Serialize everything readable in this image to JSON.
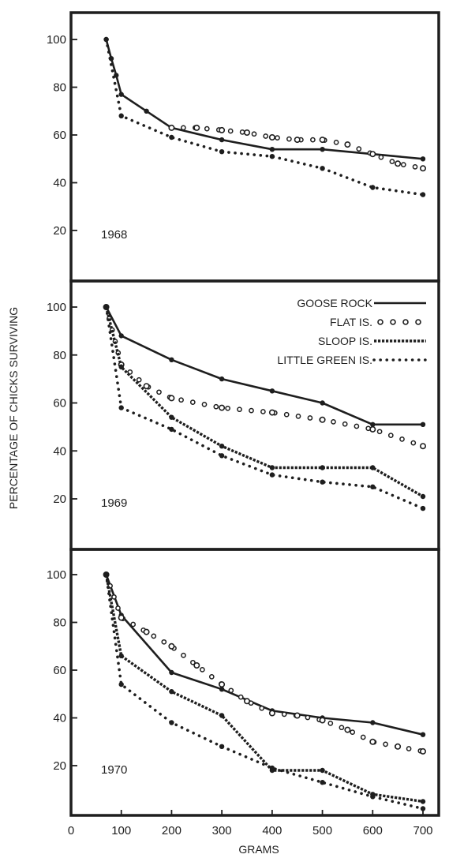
{
  "ylabel": "PERCENTAGE OF CHICKS SURVIVING",
  "xlabel": "GRAMS",
  "colors": {
    "ink": "#1e1e1e",
    "background": "#ffffff"
  },
  "chart_data": [
    {
      "type": "line",
      "panel_label": "1968",
      "xlim": [
        0,
        700
      ],
      "ylim": [
        0,
        110
      ],
      "yticks": [
        20,
        40,
        60,
        80,
        100
      ],
      "grid": false,
      "series": [
        {
          "name": "GOOSE ROCK",
          "style": "solid",
          "x": [
            70,
            80,
            90,
            100,
            150,
            200,
            300,
            400,
            500,
            600,
            700
          ],
          "y": [
            100,
            92,
            85,
            77,
            70,
            63,
            58,
            54,
            54,
            52,
            50
          ]
        },
        {
          "name": "FLAT IS.",
          "style": "hollow-dots",
          "x": [
            200,
            250,
            300,
            350,
            400,
            450,
            500,
            550,
            600,
            650,
            700
          ],
          "y": [
            63,
            63,
            62,
            61,
            59,
            58,
            58,
            56,
            52,
            48,
            46
          ]
        },
        {
          "name": "LITTLE GREEN IS.",
          "style": "dotted",
          "x": [
            70,
            100,
            200,
            300,
            400,
            500,
            600,
            700
          ],
          "y": [
            100,
            68,
            59,
            53,
            51,
            46,
            38,
            35
          ]
        }
      ]
    },
    {
      "type": "line",
      "panel_label": "1969",
      "xlim": [
        0,
        700
      ],
      "ylim": [
        0,
        110
      ],
      "yticks": [
        20,
        40,
        60,
        80,
        100
      ],
      "grid": false,
      "legend_position": "top-right",
      "series": [
        {
          "name": "GOOSE ROCK",
          "style": "solid",
          "x": [
            70,
            100,
            200,
            300,
            400,
            500,
            600,
            700
          ],
          "y": [
            100,
            88,
            78,
            70,
            65,
            60,
            51,
            51
          ]
        },
        {
          "name": "FLAT IS.",
          "style": "hollow-dots",
          "x": [
            70,
            100,
            150,
            200,
            300,
            400,
            500,
            600,
            700
          ],
          "y": [
            100,
            76,
            67,
            62,
            58,
            56,
            53,
            49,
            42
          ]
        },
        {
          "name": "SLOOP IS.",
          "style": "dashed",
          "x": [
            70,
            100,
            200,
            300,
            400,
            500,
            600,
            700
          ],
          "y": [
            100,
            75,
            54,
            42,
            33,
            33,
            33,
            21
          ]
        },
        {
          "name": "LITTLE GREEN IS.",
          "style": "dotted",
          "x": [
            70,
            100,
            200,
            300,
            400,
            500,
            600,
            700
          ],
          "y": [
            100,
            58,
            49,
            38,
            30,
            27,
            25,
            16
          ]
        }
      ]
    },
    {
      "type": "line",
      "panel_label": "1970",
      "xlim": [
        0,
        700
      ],
      "ylim": [
        0,
        110
      ],
      "yticks": [
        20,
        40,
        60,
        80,
        100
      ],
      "xticks": [
        0,
        100,
        200,
        300,
        400,
        500,
        600,
        700
      ],
      "grid": false,
      "series": [
        {
          "name": "GOOSE ROCK",
          "style": "solid",
          "x": [
            70,
            100,
            200,
            300,
            400,
            500,
            600,
            700
          ],
          "y": [
            100,
            83,
            59,
            52,
            43,
            40,
            38,
            33
          ]
        },
        {
          "name": "FLAT IS.",
          "style": "hollow-dots",
          "x": [
            70,
            100,
            150,
            200,
            250,
            300,
            350,
            400,
            450,
            500,
            550,
            600,
            650,
            700
          ],
          "y": [
            100,
            82,
            76,
            70,
            62,
            54,
            47,
            42,
            41,
            39,
            35,
            30,
            28,
            26
          ]
        },
        {
          "name": "SLOOP IS.",
          "style": "dashed",
          "x": [
            70,
            100,
            200,
            300,
            400,
            500,
            600,
            700
          ],
          "y": [
            100,
            66,
            51,
            41,
            18,
            18,
            8,
            5
          ]
        },
        {
          "name": "LITTLE GREEN IS.",
          "style": "dotted",
          "x": [
            70,
            100,
            200,
            300,
            400,
            500,
            600,
            700
          ],
          "y": [
            100,
            54,
            38,
            28,
            19,
            13,
            7,
            2
          ]
        }
      ]
    }
  ]
}
